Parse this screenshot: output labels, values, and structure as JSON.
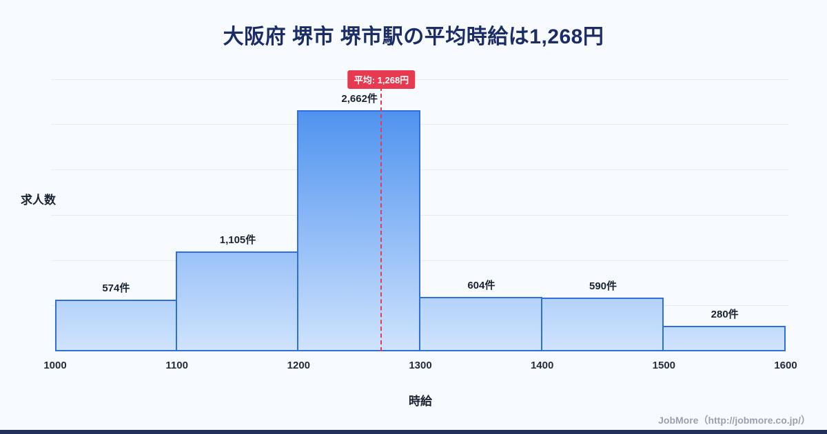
{
  "title": "大阪府 堺市 堺市駅の平均時給は1,268円",
  "ylabel": "求人数",
  "xlabel": "時給",
  "footer": {
    "credit": "JobMore（http://jobmore.co.jp/）"
  },
  "chart_data": {
    "type": "bar",
    "title": "大阪府 堺市 堺市駅の平均時給は1,268円",
    "xlabel": "時給",
    "ylabel": "求人数",
    "bin_width": 100,
    "categories": [
      1000,
      1100,
      1200,
      1300,
      1400,
      1500
    ],
    "values": [
      574,
      1105,
      2662,
      604,
      590,
      280
    ],
    "value_labels": [
      "574件",
      "1,105件",
      "2,662件",
      "604件",
      "590件",
      "280件"
    ],
    "x_ticks": [
      1000,
      1100,
      1200,
      1300,
      1400,
      1500,
      1600
    ],
    "xlim": [
      1000,
      1600
    ],
    "ylim": [
      0,
      3100
    ],
    "grid": {
      "step": 500,
      "max": 3000,
      "visible": true
    },
    "legend": "none",
    "average": 1268,
    "average_label": "平均: 1,268円",
    "colors": {
      "bar_fill_top": "#4e92ef",
      "bar_fill_bottom": "#cfe3fd",
      "bar_border": "#2f6fdd",
      "average_line": "#e63a50",
      "title": "#1b2c66"
    }
  }
}
